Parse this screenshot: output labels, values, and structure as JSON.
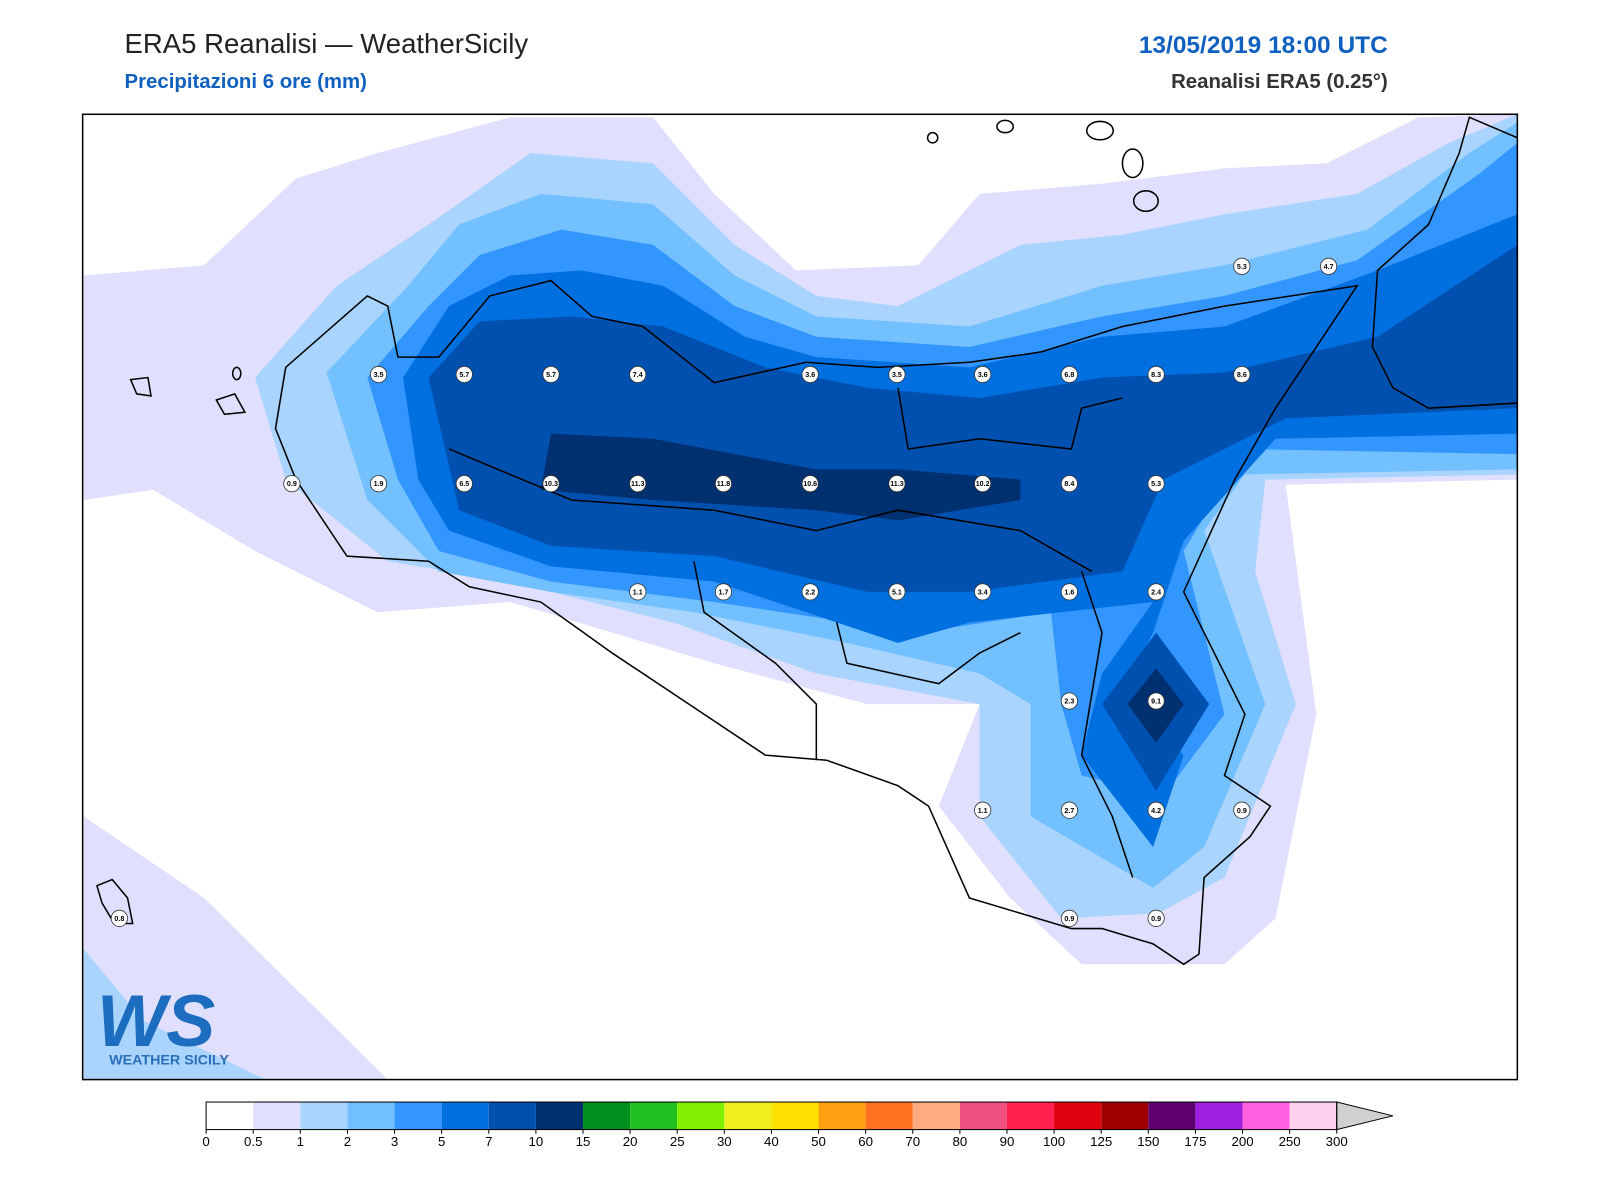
{
  "header": {
    "title": "ERA5 Reanalisi — WeatherSicily",
    "subtitle": "Precipitazioni 6 ore (mm)",
    "datetime": "13/05/2019 18:00 UTC",
    "source": "Reanalisi ERA5 (0.25°)"
  },
  "stations": [
    "3.5",
    "5.7",
    "5.7",
    "7.4",
    "3.6",
    "3.5",
    "3.6",
    "6.8",
    "8.3",
    "8.6",
    "5.3",
    "4.7",
    "0.9",
    "1.9",
    "6.5",
    "10.3",
    "11.3",
    "11.8",
    "10.6",
    "11.3",
    "10.2",
    "8.4",
    "5.3",
    "1.1",
    "1.7",
    "2.2",
    "5.1",
    "3.4",
    "1.6",
    "2.4",
    "2.3",
    "9.1",
    "1.1",
    "2.7",
    "4.2",
    "0.9",
    "0.9",
    "0.9",
    "0.8"
  ],
  "logo": {
    "mark": "WS",
    "text": "WEATHER SICILY"
  },
  "colorbar": {
    "ticks": [
      0,
      0.5,
      1,
      2,
      3,
      5,
      7,
      10,
      15,
      20,
      25,
      30,
      40,
      50,
      60,
      70,
      80,
      90,
      100,
      125,
      150,
      175,
      200,
      250,
      300
    ],
    "colors": [
      "#ffffff",
      "#e0e0fe",
      "#a8d4fe",
      "#73c0fe",
      "#3396fe",
      "#0070e0",
      "#0050b0",
      "#003070",
      "#009020",
      "#20c020",
      "#80f000",
      "#f0f020",
      "#ffe000",
      "#ffa010",
      "#ff7020",
      "#ffaa80",
      "#f05080",
      "#ff2050",
      "#e00010",
      "#a00000",
      "#600070",
      "#a020e0",
      "#ff60e0",
      "#ffd0f0"
    ],
    "extend_color": "#d0d0d0"
  }
}
